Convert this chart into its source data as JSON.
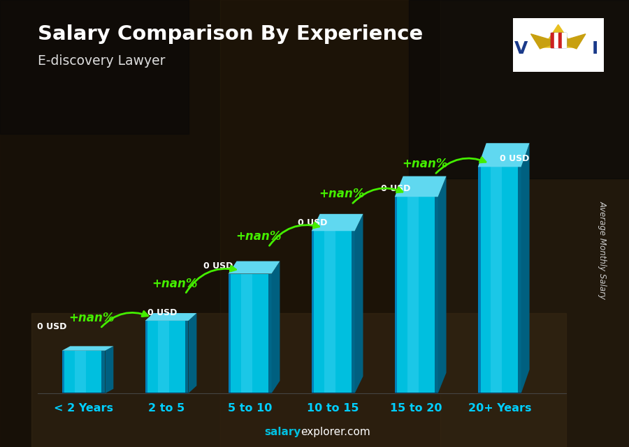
{
  "categories": [
    "< 2 Years",
    "2 to 5",
    "5 to 10",
    "10 to 15",
    "15 to 20",
    "20+ Years"
  ],
  "values": [
    1.0,
    1.7,
    2.8,
    3.8,
    4.6,
    5.3
  ],
  "bar_front_color": "#00bfdf",
  "bar_left_color": "#008bb0",
  "bar_top_color": "#60d8f0",
  "bar_right_shadow": "#006080",
  "title": "Salary Comparison By Experience",
  "subtitle": "E-discovery Lawyer",
  "ylabel": "Average Monthly Salary",
  "nan_label": "+nan%",
  "usd_label": "0 USD",
  "nan_color": "#44ee00",
  "usd_color": "#ffffff",
  "xlabel_color": "#00cfff",
  "ylabel_color": "#cccccc",
  "title_color": "#ffffff",
  "subtitle_color": "#dddddd",
  "footer_salary_color": "#00bfdf",
  "footer_rest_color": "#ffffff",
  "bg_color": "#1a1008",
  "bg_mid_color": "#2a1c0c",
  "bg_right_color": "#3a2510"
}
